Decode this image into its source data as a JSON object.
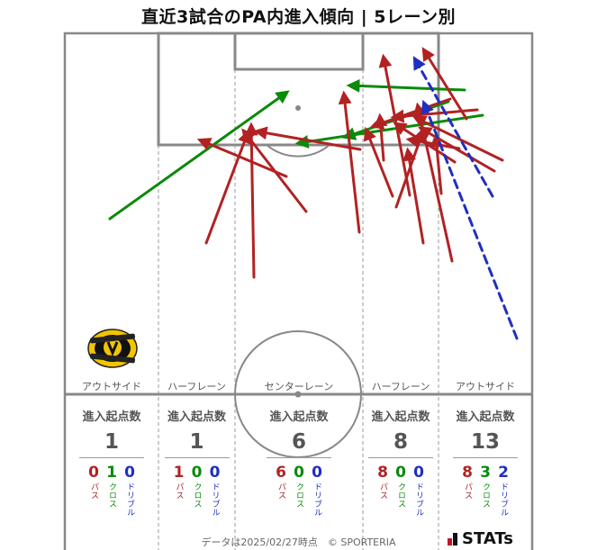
{
  "title": "直近3試合のPA内進入傾向 | 5レーン別",
  "colors": {
    "pass": "#b22222",
    "cross": "#0a8a0a",
    "dribble": "#1f2fbf",
    "line": "#888888"
  },
  "lanes": [
    {
      "label": "アウトサイド",
      "head": "進入起点数",
      "total": "1",
      "pass": "0",
      "cross": "1",
      "dribble": "0"
    },
    {
      "label": "ハーフレーン",
      "head": "進入起点数",
      "total": "1",
      "pass": "1",
      "cross": "0",
      "dribble": "0"
    },
    {
      "label": "センターレーン",
      "head": "進入起点数",
      "total": "6",
      "pass": "6",
      "cross": "0",
      "dribble": "0"
    },
    {
      "label": "ハーフレーン",
      "head": "進入起点数",
      "total": "8",
      "pass": "8",
      "cross": "0",
      "dribble": "0"
    },
    {
      "label": "アウトサイド",
      "head": "進入起点数",
      "total": "13",
      "pass": "8",
      "cross": "3",
      "dribble": "2"
    }
  ],
  "type_labels": {
    "pass": "パス",
    "cross": "クロス",
    "dribble": "ドリブル"
  },
  "footer": "データは2025/02/27時点　© SPORTERIA",
  "brand": "STATs",
  "logo_text": "KASHIWA REYSOL",
  "chart_data": {
    "type": "scatter",
    "title": "直近3試合のPA内進入傾向 | 5レーン別",
    "lanes": [
      "アウトサイド",
      "ハーフレーン",
      "センターレーン",
      "ハーフレーン",
      "アウトサイド"
    ],
    "entries_by_lane": [
      1,
      1,
      6,
      8,
      13
    ],
    "pass_by_lane": [
      0,
      1,
      6,
      8,
      8
    ],
    "cross_by_lane": [
      1,
      0,
      0,
      0,
      3
    ],
    "dribble_by_lane": [
      0,
      0,
      0,
      0,
      2
    ],
    "arrows": [
      {
        "kind": "cross",
        "from": [
          122,
          243
        ],
        "to": [
          318,
          103
        ]
      },
      {
        "kind": "cross",
        "from": [
          516,
          100
        ],
        "to": [
          389,
          95
        ]
      },
      {
        "kind": "cross",
        "from": [
          498,
          113
        ],
        "to": [
          384,
          152
        ]
      },
      {
        "kind": "cross",
        "from": [
          536,
          128
        ],
        "to": [
          332,
          159
        ]
      },
      {
        "kind": "pass",
        "from": [
          229,
          270
        ],
        "to": [
          275,
          148
        ]
      },
      {
        "kind": "pass",
        "from": [
          282,
          308
        ],
        "to": [
          279,
          140
        ]
      },
      {
        "kind": "pass",
        "from": [
          340,
          235
        ],
        "to": [
          271,
          146
        ]
      },
      {
        "kind": "pass",
        "from": [
          318,
          196
        ],
        "to": [
          223,
          156
        ]
      },
      {
        "kind": "pass",
        "from": [
          400,
          166
        ],
        "to": [
          286,
          146
        ]
      },
      {
        "kind": "pass",
        "from": [
          399,
          258
        ],
        "to": [
          382,
          105
        ]
      },
      {
        "kind": "pass",
        "from": [
          455,
          217
        ],
        "to": [
          426,
          64
        ]
      },
      {
        "kind": "pass",
        "from": [
          436,
          218
        ],
        "to": [
          407,
          145
        ]
      },
      {
        "kind": "pass",
        "from": [
          426,
          178
        ],
        "to": [
          422,
          130
        ]
      },
      {
        "kind": "pass",
        "from": [
          440,
          230
        ],
        "to": [
          470,
          145
        ]
      },
      {
        "kind": "pass",
        "from": [
          470,
          270
        ],
        "to": [
          453,
          168
        ]
      },
      {
        "kind": "pass",
        "from": [
          502,
          290
        ],
        "to": [
          464,
          118
        ]
      },
      {
        "kind": "pass",
        "from": [
          518,
          132
        ],
        "to": [
          471,
          56
        ]
      },
      {
        "kind": "pass",
        "from": [
          549,
          190
        ],
        "to": [
          468,
          143
        ]
      },
      {
        "kind": "pass",
        "from": [
          558,
          178
        ],
        "to": [
          462,
          131
        ]
      },
      {
        "kind": "pass",
        "from": [
          530,
          122
        ],
        "to": [
          438,
          130
        ]
      },
      {
        "kind": "pass",
        "from": [
          500,
          110
        ],
        "to": [
          415,
          140
        ]
      },
      {
        "kind": "pass",
        "from": [
          510,
          165
        ],
        "to": [
          455,
          155
        ]
      },
      {
        "kind": "pass",
        "from": [
          490,
          215
        ],
        "to": [
          484,
          153
        ]
      },
      {
        "kind": "pass",
        "from": [
          505,
          180
        ],
        "to": [
          440,
          138
        ]
      },
      {
        "kind": "dribble",
        "from": [
          547,
          218
        ],
        "to": [
          461,
          66
        ]
      },
      {
        "kind": "dribble",
        "from": [
          574,
          376
        ],
        "to": [
          471,
          115
        ]
      }
    ]
  }
}
